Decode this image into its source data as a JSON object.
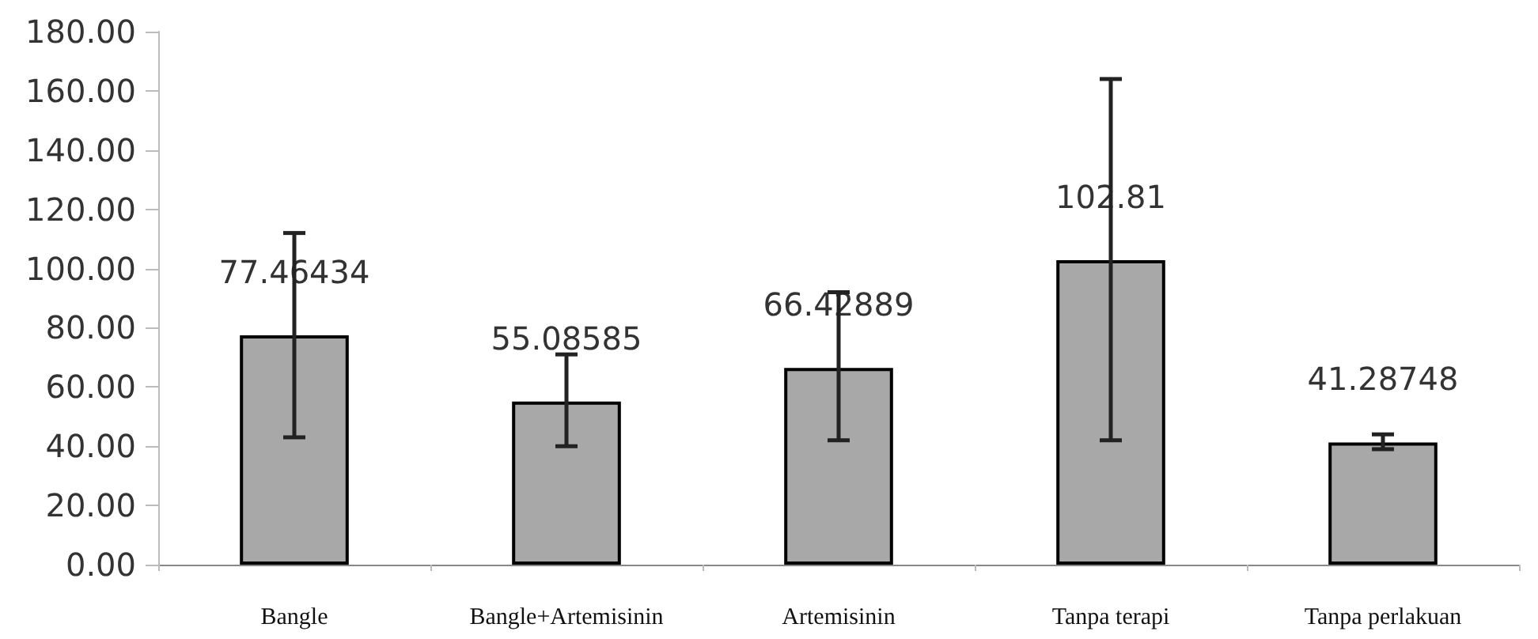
{
  "chart_data": {
    "type": "bar",
    "categories": [
      "Bangle",
      "Bangle+Artemisinin",
      "Artemisinin",
      "Tanpa terapi",
      "Tanpa perlakuan"
    ],
    "values": [
      77.46434,
      55.08585,
      66.42889,
      102.81,
      41.28748
    ],
    "errors": [
      [
        43,
        112
      ],
      [
        40,
        71
      ],
      [
        42,
        92
      ],
      [
        42,
        164
      ],
      [
        39,
        44
      ]
    ],
    "color": "#a8a8a8",
    "data_labels": true,
    "ylim": [
      0,
      180
    ],
    "yticks": [
      {
        "value": 0,
        "label": "0.00"
      },
      {
        "value": 20,
        "label": "20.00"
      },
      {
        "value": 40,
        "label": "40.00"
      },
      {
        "value": 60,
        "label": "60.00"
      },
      {
        "value": 80,
        "label": "80.00"
      },
      {
        "value": 100,
        "label": "100.00"
      },
      {
        "value": 120,
        "label": "120.00"
      },
      {
        "value": 140,
        "label": "140.00"
      },
      {
        "value": 160,
        "label": "160.00"
      },
      {
        "value": 180,
        "label": "180.00"
      }
    ],
    "grid": false
  }
}
